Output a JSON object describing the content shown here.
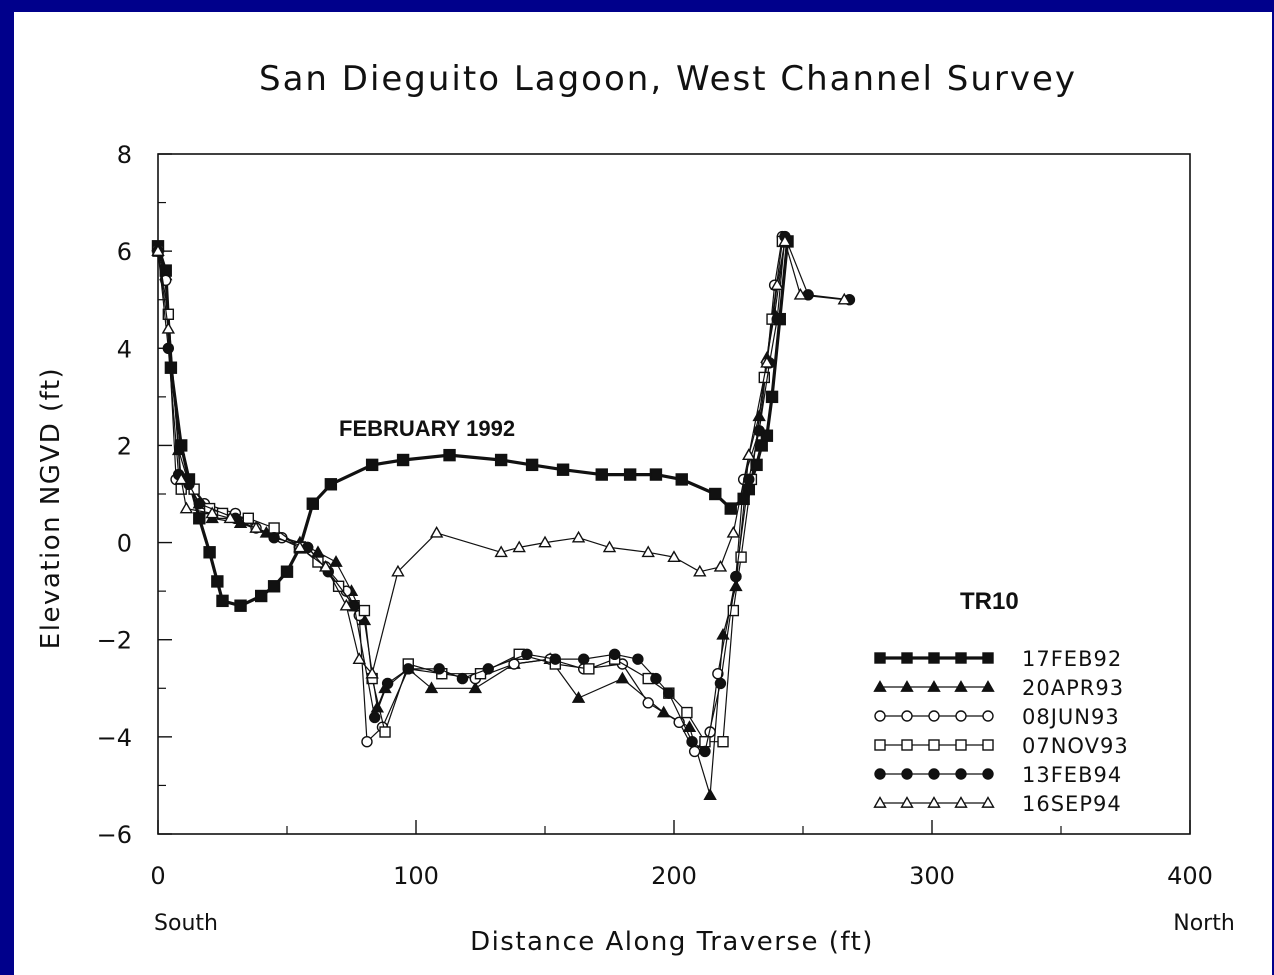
{
  "colors": {
    "frame": "#00008b",
    "panel": "#ffffff",
    "ink": "#111111"
  },
  "chart_data": {
    "type": "line",
    "title": "San Dieguito Lagoon, West Channel Survey",
    "xlabel": "Distance Along Traverse (ft)",
    "ylabel": "Elevation NGVD (ft)",
    "xlim": [
      0,
      400
    ],
    "ylim": [
      -6,
      8
    ],
    "x_ticks": [
      0,
      100,
      200,
      300,
      400
    ],
    "y_ticks": [
      -6,
      -4,
      -2,
      0,
      2,
      4,
      6,
      8
    ],
    "x_tick_labels": [
      "0",
      "100",
      "200",
      "300",
      "400"
    ],
    "y_tick_labels": [
      "−6",
      "−4",
      "−2",
      "0",
      "2",
      "4",
      "6",
      "8"
    ],
    "x_end_labels": {
      "left": "South",
      "right": "North"
    },
    "annotation": "FEBRUARY 1992",
    "legend_title": "TR10",
    "legend_position": "bottom-right",
    "grid": false,
    "series": [
      {
        "name": "17FEB92",
        "marker": "square",
        "filled": true,
        "bold": true,
        "points": [
          [
            0,
            6.1
          ],
          [
            3,
            5.6
          ],
          [
            5,
            3.6
          ],
          [
            9,
            2.0
          ],
          [
            12,
            1.3
          ],
          [
            16,
            0.5
          ],
          [
            20,
            -0.2
          ],
          [
            23,
            -0.8
          ],
          [
            25,
            -1.2
          ],
          [
            32,
            -1.3
          ],
          [
            40,
            -1.1
          ],
          [
            45,
            -0.9
          ],
          [
            50,
            -0.6
          ],
          [
            55,
            -0.1
          ],
          [
            60,
            0.8
          ],
          [
            67,
            1.2
          ],
          [
            83,
            1.6
          ],
          [
            95,
            1.7
          ],
          [
            113,
            1.8
          ],
          [
            133,
            1.7
          ],
          [
            145,
            1.6
          ],
          [
            157,
            1.5
          ],
          [
            172,
            1.4
          ],
          [
            183,
            1.4
          ],
          [
            193,
            1.4
          ],
          [
            203,
            1.3
          ],
          [
            216,
            1.0
          ],
          [
            222,
            0.7
          ],
          [
            227,
            0.9
          ],
          [
            229,
            1.1
          ],
          [
            232,
            1.6
          ],
          [
            234,
            2.0
          ],
          [
            236,
            2.2
          ],
          [
            238,
            3.0
          ],
          [
            241,
            4.6
          ],
          [
            244,
            6.2
          ]
        ]
      },
      {
        "name": "20APR93",
        "marker": "triangle",
        "filled": true,
        "bold": false,
        "points": [
          [
            0,
            6.1
          ],
          [
            3,
            5.5
          ],
          [
            8,
            1.9
          ],
          [
            12,
            1.2
          ],
          [
            16,
            0.8
          ],
          [
            21,
            0.5
          ],
          [
            32,
            0.4
          ],
          [
            42,
            0.2
          ],
          [
            55,
            0.0
          ],
          [
            62,
            -0.2
          ],
          [
            69,
            -0.4
          ],
          [
            75,
            -1.0
          ],
          [
            80,
            -1.6
          ],
          [
            85,
            -3.4
          ],
          [
            88,
            -3.0
          ],
          [
            97,
            -2.6
          ],
          [
            106,
            -3.0
          ],
          [
            123,
            -3.0
          ],
          [
            138,
            -2.5
          ],
          [
            152,
            -2.4
          ],
          [
            163,
            -3.2
          ],
          [
            180,
            -2.8
          ],
          [
            196,
            -3.5
          ],
          [
            206,
            -3.8
          ],
          [
            214,
            -5.2
          ],
          [
            219,
            -1.9
          ],
          [
            224,
            -0.9
          ],
          [
            229,
            1.8
          ],
          [
            233,
            2.6
          ],
          [
            236,
            3.8
          ],
          [
            239,
            4.7
          ],
          [
            243,
            6.2
          ]
        ]
      },
      {
        "name": "08JUN93",
        "marker": "circle",
        "filled": false,
        "bold": false,
        "points": [
          [
            0,
            6.0
          ],
          [
            3,
            5.4
          ],
          [
            7,
            1.3
          ],
          [
            12,
            1.2
          ],
          [
            18,
            0.8
          ],
          [
            30,
            0.6
          ],
          [
            38,
            0.3
          ],
          [
            48,
            0.1
          ],
          [
            58,
            -0.1
          ],
          [
            65,
            -0.5
          ],
          [
            73,
            -1.0
          ],
          [
            78,
            -1.5
          ],
          [
            81,
            -4.1
          ],
          [
            87,
            -3.8
          ],
          [
            97,
            -2.6
          ],
          [
            110,
            -2.7
          ],
          [
            123,
            -2.8
          ],
          [
            138,
            -2.5
          ],
          [
            152,
            -2.4
          ],
          [
            165,
            -2.6
          ],
          [
            180,
            -2.5
          ],
          [
            190,
            -3.3
          ],
          [
            202,
            -3.7
          ],
          [
            208,
            -4.3
          ],
          [
            214,
            -3.9
          ],
          [
            217,
            -2.7
          ],
          [
            224,
            -0.7
          ],
          [
            227,
            1.3
          ],
          [
            233,
            2.3
          ],
          [
            236,
            3.7
          ],
          [
            239,
            5.3
          ],
          [
            242,
            6.3
          ]
        ]
      },
      {
        "name": "07NOV93",
        "marker": "square",
        "filled": false,
        "bold": false,
        "points": [
          [
            0,
            6.0
          ],
          [
            4,
            4.7
          ],
          [
            9,
            1.1
          ],
          [
            14,
            1.1
          ],
          [
            20,
            0.7
          ],
          [
            25,
            0.6
          ],
          [
            35,
            0.5
          ],
          [
            45,
            0.3
          ],
          [
            55,
            -0.1
          ],
          [
            62,
            -0.4
          ],
          [
            70,
            -0.9
          ],
          [
            76,
            -1.3
          ],
          [
            80,
            -1.4
          ],
          [
            83,
            -2.8
          ],
          [
            88,
            -3.9
          ],
          [
            97,
            -2.5
          ],
          [
            110,
            -2.7
          ],
          [
            125,
            -2.7
          ],
          [
            140,
            -2.3
          ],
          [
            154,
            -2.5
          ],
          [
            167,
            -2.6
          ],
          [
            177,
            -2.4
          ],
          [
            190,
            -2.8
          ],
          [
            198,
            -3.1
          ],
          [
            205,
            -3.5
          ],
          [
            212,
            -4.1
          ],
          [
            219,
            -4.1
          ],
          [
            223,
            -1.4
          ],
          [
            226,
            -0.3
          ],
          [
            230,
            1.3
          ],
          [
            235,
            3.4
          ],
          [
            238,
            4.6
          ],
          [
            242,
            6.2
          ]
        ]
      },
      {
        "name": "13FEB94",
        "marker": "circle",
        "filled": true,
        "bold": false,
        "points": [
          [
            0,
            6.0
          ],
          [
            4,
            4.0
          ],
          [
            8,
            1.4
          ],
          [
            12,
            1.2
          ],
          [
            16,
            0.8
          ],
          [
            30,
            0.5
          ],
          [
            45,
            0.1
          ],
          [
            58,
            -0.1
          ],
          [
            66,
            -0.6
          ],
          [
            76,
            -1.3
          ],
          [
            84,
            -3.6
          ],
          [
            89,
            -2.9
          ],
          [
            97,
            -2.6
          ],
          [
            109,
            -2.6
          ],
          [
            118,
            -2.8
          ],
          [
            128,
            -2.6
          ],
          [
            143,
            -2.3
          ],
          [
            154,
            -2.4
          ],
          [
            165,
            -2.4
          ],
          [
            177,
            -2.3
          ],
          [
            186,
            -2.4
          ],
          [
            193,
            -2.8
          ],
          [
            198,
            -3.1
          ],
          [
            207,
            -4.1
          ],
          [
            212,
            -4.3
          ],
          [
            218,
            -2.9
          ],
          [
            224,
            -0.7
          ],
          [
            229,
            1.3
          ],
          [
            233,
            2.3
          ],
          [
            237,
            3.7
          ],
          [
            240,
            4.6
          ],
          [
            243,
            6.3
          ],
          [
            252,
            5.1
          ],
          [
            268,
            5.0
          ]
        ]
      },
      {
        "name": "16SEP94",
        "marker": "triangle",
        "filled": false,
        "bold": false,
        "points": [
          [
            0,
            6.0
          ],
          [
            4,
            4.4
          ],
          [
            9,
            1.3
          ],
          [
            11,
            0.7
          ],
          [
            21,
            0.6
          ],
          [
            28,
            0.5
          ],
          [
            38,
            0.3
          ],
          [
            55,
            -0.1
          ],
          [
            65,
            -0.5
          ],
          [
            73,
            -1.3
          ],
          [
            78,
            -2.4
          ],
          [
            83,
            -2.7
          ],
          [
            93,
            -0.6
          ],
          [
            108,
            0.2
          ],
          [
            133,
            -0.2
          ],
          [
            140,
            -0.1
          ],
          [
            150,
            0.0
          ],
          [
            163,
            0.1
          ],
          [
            175,
            -0.1
          ],
          [
            190,
            -0.2
          ],
          [
            200,
            -0.3
          ],
          [
            210,
            -0.6
          ],
          [
            218,
            -0.5
          ],
          [
            223,
            0.2
          ],
          [
            229,
            1.8
          ],
          [
            236,
            3.7
          ],
          [
            240,
            5.3
          ],
          [
            243,
            6.2
          ],
          [
            249,
            5.1
          ],
          [
            266,
            5.0
          ]
        ]
      }
    ]
  }
}
